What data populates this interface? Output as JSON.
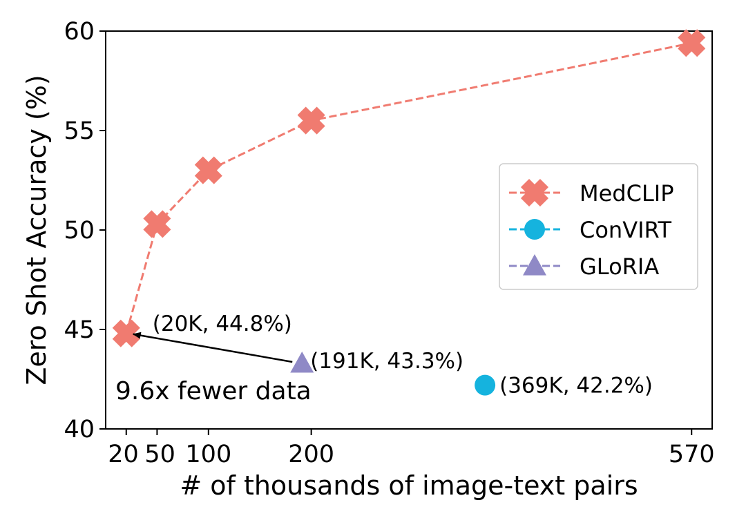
{
  "chart_data": {
    "type": "scatter",
    "xlabel": "# of thousands of image-text pairs",
    "ylabel": "Zero Shot Accuracy (%)",
    "xlim": [
      0,
      590
    ],
    "ylim": [
      40,
      60
    ],
    "x_ticks": [
      20,
      50,
      100,
      200,
      570
    ],
    "x_tick_labels": [
      "20",
      "50",
      "100",
      "200",
      "570"
    ],
    "y_ticks": [
      40,
      45,
      50,
      55,
      60
    ],
    "y_tick_labels": [
      "40",
      "45",
      "50",
      "55",
      "60"
    ],
    "grid": false,
    "legend_position": "center-right",
    "series": [
      {
        "name": "MedCLIP",
        "marker": "x-filled",
        "line": "dashed",
        "color": "#f07b70",
        "x": [
          20,
          50,
          100,
          200,
          570
        ],
        "y": [
          44.8,
          50.3,
          53.0,
          55.5,
          59.4
        ]
      },
      {
        "name": "ConVIRT",
        "marker": "circle",
        "line": "dashed",
        "color": "#15b3de",
        "x": [
          369
        ],
        "y": [
          42.2
        ]
      },
      {
        "name": "GLoRIA",
        "marker": "triangle",
        "line": "dashed",
        "color": "#8f89c6",
        "x": [
          191
        ],
        "y": [
          43.3
        ]
      }
    ],
    "annotations": [
      {
        "text": "(20K, 44.8%)",
        "x": 20,
        "y": 44.8
      },
      {
        "text": "(191K, 43.3%)",
        "x": 191,
        "y": 43.3
      },
      {
        "text": "(369K, 42.2%)",
        "x": 369,
        "y": 42.2
      },
      {
        "text": "9.6x fewer data",
        "x": 191,
        "y": 43.3,
        "arrow_to": [
          20,
          44.8
        ]
      }
    ]
  }
}
